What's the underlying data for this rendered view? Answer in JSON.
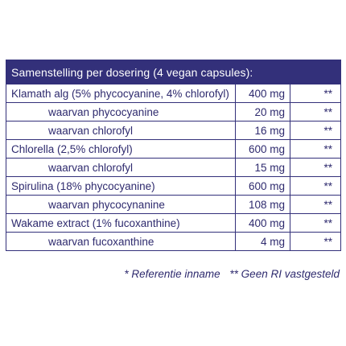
{
  "table": {
    "header": "Samenstelling per dosering (4 vegan capsules):",
    "rows": [
      {
        "name": "Klamath alg (5% phycocyanine, 4% chlorofyl)",
        "amount": "400 mg",
        "ri": "**",
        "sub": false
      },
      {
        "name": "waarvan phycocyanine",
        "amount": "20 mg",
        "ri": "**",
        "sub": true
      },
      {
        "name": "waarvan chlorofyl",
        "amount": "16 mg",
        "ri": "**",
        "sub": true
      },
      {
        "name": "Chlorella (2,5% chlorofyl)",
        "amount": "600 mg",
        "ri": "**",
        "sub": false
      },
      {
        "name": "waarvan chlorofyl",
        "amount": "15 mg",
        "ri": "**",
        "sub": true
      },
      {
        "name": "Spirulina (18% phycocyanine)",
        "amount": "600 mg",
        "ri": "**",
        "sub": false
      },
      {
        "name": "waarvan phycocynanine",
        "amount": "108 mg",
        "ri": "**",
        "sub": true
      },
      {
        "name": "Wakame extract (1% fucoxanthine)",
        "amount": "400 mg",
        "ri": "**",
        "sub": false
      },
      {
        "name": "waarvan fucoxanthine",
        "amount": "4 mg",
        "ri": "**",
        "sub": true
      }
    ]
  },
  "footnote": {
    "reference": "* Referentie inname",
    "no_ri": "** Geen RI vastgesteld"
  },
  "colors": {
    "accent": "#33307a",
    "text": "#2e2a6e",
    "background": "#ffffff"
  }
}
